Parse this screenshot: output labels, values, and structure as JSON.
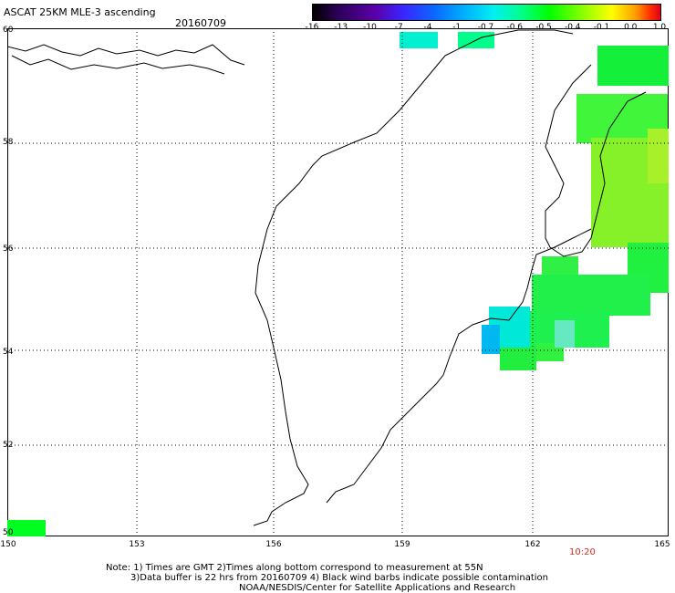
{
  "header": {
    "title": "ASCAT 25KM MLE-3 ascending",
    "date": "20160709"
  },
  "colorbar": {
    "labels": [
      "-16",
      "-13",
      "-10",
      "-7",
      "-4",
      "-1",
      "-0.7",
      "-0.6",
      "-0.5",
      "-0.4",
      "-0.1",
      "0.0",
      "1.0"
    ],
    "colors": [
      "#000000",
      "#2b0055",
      "#5a00aa",
      "#3a25ff",
      "#0a68ff",
      "#00b2ff",
      "#00f0f0",
      "#00ff8a",
      "#00ff00",
      "#90ff00",
      "#ffff00",
      "#ff9a00",
      "#ff3000",
      "#e0001a"
    ]
  },
  "axes": {
    "lat_labels": [
      "60",
      "58",
      "56",
      "54",
      "52",
      "50"
    ],
    "lon_labels": [
      "150",
      "153",
      "156",
      "159",
      "162",
      "165"
    ]
  },
  "time_label": "10:20",
  "notes": [
    "Note: 1) Times are GMT 2)Times along bottom correspond to measurement at 55N",
    "3)Data buffer is 22 hrs from 20160709 4) Black wind barbs indicate possible contamination",
    "NOAA/NESDIS/Center for Satellite Applications and Research"
  ]
}
